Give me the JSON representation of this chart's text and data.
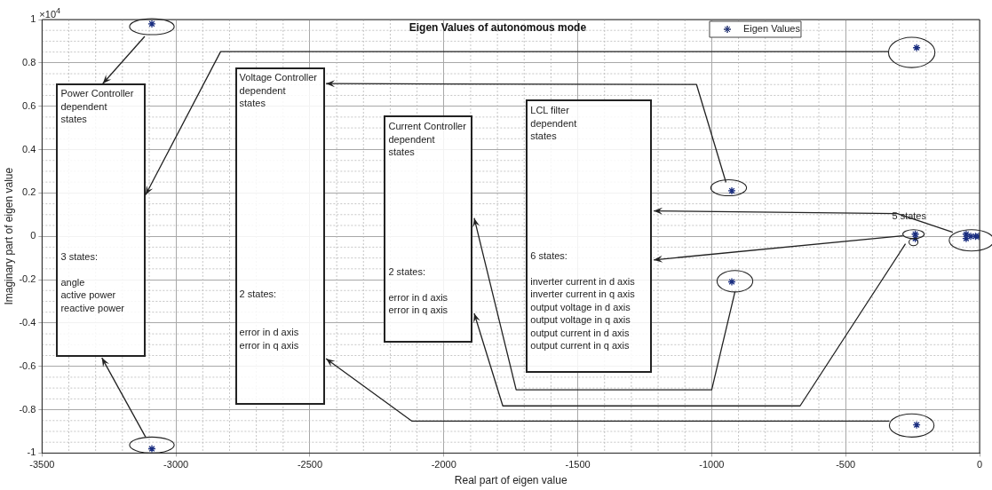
{
  "chart_data": {
    "type": "scatter",
    "title": "Eigen Values of autonomous mode",
    "xlabel": "Real part of eigen value",
    "ylabel": "Imaginary part of eigen value",
    "x": [
      -3090,
      -3090,
      -235,
      -235,
      -925,
      -925,
      -240,
      -240,
      -50,
      -50,
      -33,
      -15,
      -3
    ],
    "series": [
      {
        "name": "Eigen Values",
        "color": "#1a2e80",
        "values": [
          0.98,
          -0.98,
          0.87,
          -0.87,
          0.21,
          -0.21,
          0.01,
          -0.01,
          0.01,
          -0.01,
          0,
          0,
          0
        ]
      }
    ],
    "xlim": [
      -3500,
      0
    ],
    "xticks": [
      -3500,
      -3000,
      -2500,
      -2000,
      -1500,
      -1000,
      -500,
      0
    ],
    "ylim": [
      -1,
      1
    ],
    "yticks": [
      -1,
      -0.8,
      -0.6,
      -0.4,
      -0.2,
      0,
      0.2,
      0.4,
      0.6,
      0.8,
      1
    ],
    "grid": true,
    "legend": "top right",
    "marker": "cross",
    "annotations": [
      "×10$^{4}$",
      "Power Controller\ndependent\nstates",
      "3 states:\n\nangle\nactive power\nreactive power",
      "Voltage Controller\ndependent\nstates",
      "2 states:\n\n\nerror in d axis\nerror in q axis",
      "Current Controller\ndependent\nstates",
      "2 states:\n\nerror in d axis\nerror in q axis",
      "LCL filter\ndependent\nstates",
      "6 states:\n\ninverter current in d axis\ninverter current in q axis\noutput voltage in d axis\noutput voltage in q axis\noutput current in d axis\noutput current in q axis",
      "5 states"
    ]
  }
}
